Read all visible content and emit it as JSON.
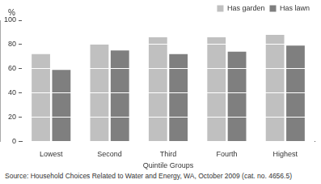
{
  "chart_data": {
    "type": "bar",
    "ylabel": "%",
    "xlabel": "Quintile Groups",
    "categories": [
      "Lowest",
      "Second",
      "Third",
      "Fourth",
      "Highest"
    ],
    "series": [
      {
        "name": "Has garden",
        "color": "#c0c0c0",
        "values": [
          72,
          80,
          86,
          86,
          88
        ]
      },
      {
        "name": "Has lawn",
        "color": "#7f7f7f",
        "values": [
          59,
          75,
          72,
          74,
          79
        ]
      }
    ],
    "ylim": [
      0,
      100
    ],
    "yticks": [
      0,
      20,
      40,
      60,
      80,
      100
    ],
    "grid": true,
    "legend": "top-right",
    "source": "Source: Household Choices Related to Water and Energy, WA, October 2009 (cat. no. 4656.5)"
  }
}
